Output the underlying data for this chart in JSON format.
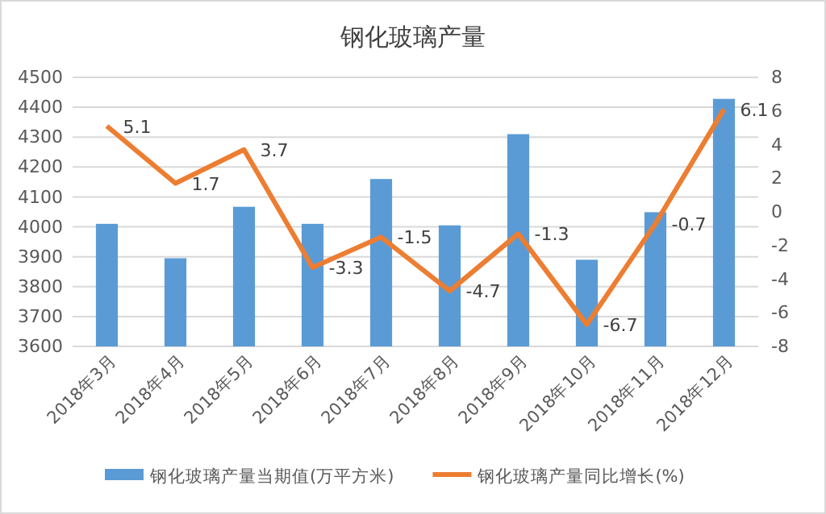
{
  "chart_data": {
    "type": "bar",
    "title": "钢化玻璃产量",
    "categories": [
      "2018年3月",
      "2018年4月",
      "2018年5月",
      "2018年6月",
      "2018年7月",
      "2018年8月",
      "2018年9月",
      "2018年10月",
      "2018年11月",
      "2018年12月"
    ],
    "series": [
      {
        "name": "钢化玻璃产量当期值(万平方米)",
        "color": "#5b9bd5",
        "values": [
          4010,
          3895,
          4067,
          4010,
          4160,
          4005,
          4310,
          3890,
          4049,
          4428
        ]
      },
      {
        "name": "钢化玻璃产量同比增长(%)",
        "type": "line",
        "axis": "y2",
        "color": "#ed7d31",
        "values": [
          5.1,
          1.7,
          3.7,
          -3.3,
          -1.5,
          -4.7,
          -1.3,
          -6.7,
          -0.7,
          6.1
        ],
        "value_labels": [
          "5.1",
          "1.7",
          "3.7",
          "-3.3",
          "-1.5",
          "-4.7",
          "-1.3",
          "-6.7",
          "-0.7",
          "6.1"
        ]
      }
    ],
    "ylim": [
      3600,
      4500
    ],
    "yticks": [
      3600,
      3700,
      3800,
      3900,
      4000,
      4100,
      4200,
      4300,
      4400,
      4500
    ],
    "y2lim": [
      -8,
      8
    ],
    "y2ticks": [
      -8,
      -6,
      -4,
      -2,
      0,
      2,
      4,
      6,
      8
    ],
    "grid": "y",
    "legend": "bottom",
    "marker": "none",
    "line_style": "solid"
  }
}
